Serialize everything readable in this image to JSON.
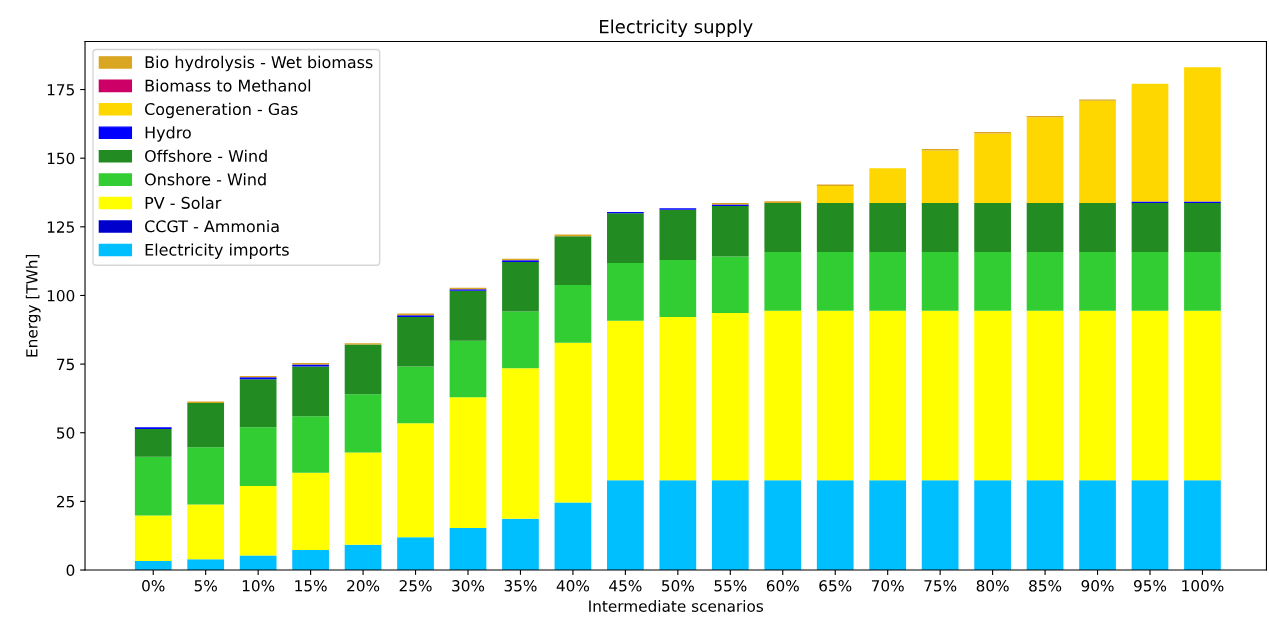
{
  "chart_data": {
    "type": "bar",
    "stacked": true,
    "title": "Electricity supply",
    "xlabel": "Intermediate scenarios",
    "ylabel": "Energy [TWh]",
    "categories": [
      "0%",
      "5%",
      "10%",
      "15%",
      "20%",
      "25%",
      "30%",
      "35%",
      "40%",
      "45%",
      "50%",
      "55%",
      "60%",
      "65%",
      "70%",
      "75%",
      "80%",
      "85%",
      "90%",
      "95%",
      "100%"
    ],
    "ylim": [
      0,
      192.5
    ],
    "yticks": [
      0,
      25,
      50,
      75,
      100,
      125,
      150,
      175
    ],
    "grid": false,
    "legend": "top left",
    "series": [
      {
        "name": "Electricity imports",
        "color": "#00bfff",
        "values": [
          3.3,
          3.9,
          5.3,
          7.3,
          9.2,
          11.9,
          15.3,
          18.7,
          24.6,
          32.7,
          32.7,
          32.7,
          32.7,
          32.7,
          32.7,
          32.7,
          32.7,
          32.7,
          32.7,
          32.7,
          32.7
        ]
      },
      {
        "name": "CCGT - Ammonia",
        "color": "#0000cd",
        "values": [
          0,
          0,
          0,
          0,
          0,
          0,
          0,
          0,
          0,
          0,
          0,
          0,
          0,
          0,
          0,
          0,
          0,
          0,
          0,
          0,
          0
        ]
      },
      {
        "name": "PV - Solar",
        "color": "#ffff00",
        "values": [
          16.6,
          20.0,
          25.3,
          28.1,
          33.6,
          41.6,
          47.6,
          54.8,
          58.2,
          58.1,
          59.5,
          60.9,
          61.7,
          61.7,
          61.7,
          61.7,
          61.7,
          61.7,
          61.7,
          61.7,
          61.7
        ]
      },
      {
        "name": "Onshore - Wind",
        "color": "#32cd32",
        "values": [
          21.4,
          20.8,
          21.4,
          20.6,
          21.2,
          20.6,
          20.6,
          20.7,
          21.0,
          21.0,
          20.7,
          20.6,
          21.4,
          21.4,
          21.4,
          21.4,
          21.4,
          21.4,
          21.4,
          21.4,
          21.4
        ]
      },
      {
        "name": "Offshore - Wind",
        "color": "#228b22",
        "values": [
          10.1,
          16.1,
          17.5,
          18.1,
          18.1,
          18.1,
          18.2,
          18.0,
          17.8,
          18.1,
          18.3,
          18.4,
          17.9,
          17.9,
          17.9,
          17.9,
          17.9,
          17.9,
          17.9,
          17.9,
          17.9
        ]
      },
      {
        "name": "Hydro",
        "color": "#0000ff",
        "values": [
          0.6,
          0,
          0.7,
          0.8,
          0,
          0.6,
          0.6,
          0.6,
          0,
          0.5,
          0.6,
          0.5,
          0,
          0,
          0,
          0,
          0,
          0,
          0,
          0.5,
          0.5
        ]
      },
      {
        "name": "Cogeneration - Gas",
        "color": "#ffd700",
        "values": [
          0,
          0,
          0,
          0,
          0,
          0,
          0,
          0,
          0,
          0,
          0,
          0,
          0,
          6.2,
          12.6,
          19.1,
          25.3,
          31.2,
          37.2,
          42.9,
          48.9
        ]
      },
      {
        "name": "Biomass to Methanol",
        "color": "#cc0066",
        "values": [
          0,
          0,
          0,
          0,
          0,
          0,
          0,
          0,
          0,
          0,
          0,
          0,
          0,
          0,
          0,
          0,
          0,
          0,
          0,
          0,
          0
        ]
      },
      {
        "name": "Bio hydrolysis - Wet biomass",
        "color": "#daa520",
        "values": [
          0,
          0.6,
          0.5,
          0.5,
          0.5,
          0.6,
          0.5,
          0.6,
          0.6,
          0,
          0,
          0.6,
          0.6,
          0.5,
          0,
          0.5,
          0.5,
          0.5,
          0.5,
          0,
          0
        ]
      }
    ]
  }
}
